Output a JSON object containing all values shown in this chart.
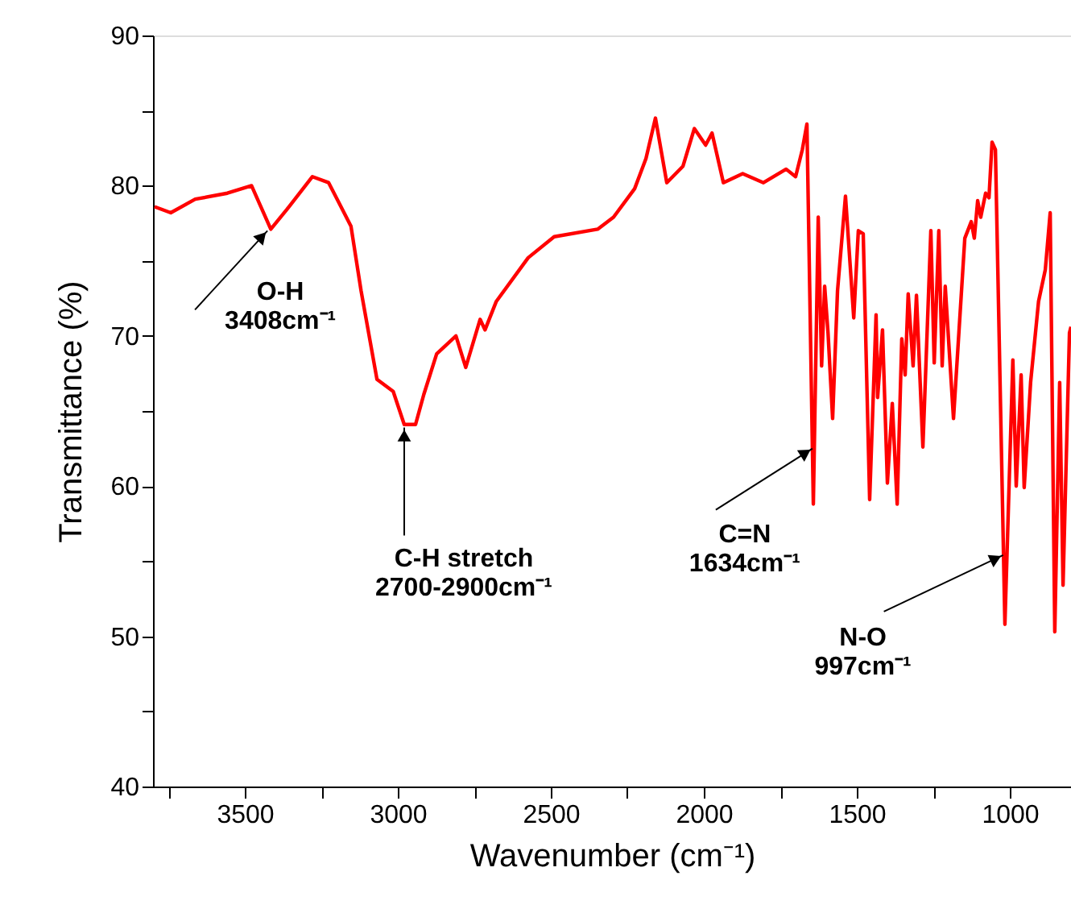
{
  "chart_data": {
    "type": "line",
    "xlabel": "Wavenumber (cm⁻¹)",
    "ylabel": "Transmittance (%)",
    "xlim": [
      3800,
      800
    ],
    "ylim": [
      40,
      90
    ],
    "xticks": [
      {
        "value": 3750,
        "label": null
      },
      3500,
      {
        "value": 3250,
        "label": null
      },
      3000,
      {
        "value": 2750,
        "label": null
      },
      2500,
      {
        "value": 2250,
        "label": null
      },
      2000,
      {
        "value": 1750,
        "label": null
      },
      1500,
      {
        "value": 1250,
        "label": null
      },
      1000
    ],
    "yticks": [
      40,
      {
        "value": 45,
        "label": null
      },
      50,
      {
        "value": 55,
        "label": null
      },
      60,
      {
        "value": 65,
        "label": null
      },
      70,
      {
        "value": 75,
        "label": null
      },
      80,
      {
        "value": 85,
        "label": null
      },
      90
    ],
    "grid": false,
    "marker": "none",
    "line_style": "solid",
    "series": [
      {
        "color": "#ff0000",
        "x": [
          3795,
          3742,
          3662,
          3557,
          3478,
          3415,
          3363,
          3279,
          3226,
          3153,
          3120,
          3068,
          3015,
          2979,
          2942,
          2915,
          2873,
          2810,
          2778,
          2731,
          2715,
          2678,
          2574,
          2489,
          2347,
          2295,
          2226,
          2189,
          2158,
          2121,
          2068,
          2031,
          1994,
          1973,
          1936,
          1873,
          1805,
          1731,
          1700,
          1678,
          1663,
          1642,
          1626,
          1615,
          1605,
          1594,
          1579,
          1563,
          1537,
          1510,
          1495,
          1479,
          1458,
          1437,
          1432,
          1416,
          1400,
          1384,
          1368,
          1353,
          1342,
          1332,
          1316,
          1305,
          1284,
          1258,
          1247,
          1232,
          1221,
          1211,
          1184,
          1147,
          1126,
          1116,
          1105,
          1095,
          1079,
          1068,
          1058,
          1047,
          1016,
          990,
          979,
          963,
          953,
          932,
          906,
          884,
          868,
          853,
          837,
          826,
          805,
          800
        ],
        "values": [
          78.6,
          78.2,
          79.1,
          79.5,
          80.0,
          77.1,
          78.4,
          80.6,
          80.2,
          77.3,
          73.0,
          67.1,
          66.3,
          64.1,
          64.1,
          66.1,
          68.8,
          70.0,
          67.9,
          71.1,
          70.4,
          72.3,
          75.2,
          76.6,
          77.1,
          77.9,
          79.8,
          81.8,
          84.5,
          80.2,
          81.3,
          83.8,
          82.7,
          83.5,
          80.2,
          80.8,
          80.2,
          81.1,
          80.6,
          82.4,
          84.1,
          58.8,
          77.9,
          68.0,
          73.3,
          70.2,
          64.5,
          73.0,
          79.3,
          71.2,
          77.0,
          76.8,
          59.1,
          71.4,
          65.9,
          70.4,
          60.2,
          65.5,
          58.8,
          69.8,
          67.4,
          72.8,
          68.0,
          72.7,
          62.6,
          77.0,
          68.2,
          77.0,
          68.0,
          73.3,
          64.5,
          76.5,
          77.6,
          76.5,
          79.0,
          77.9,
          79.5,
          79.2,
          82.9,
          82.4,
          50.8,
          68.4,
          60.0,
          67.4,
          59.9,
          66.9,
          72.3,
          74.4,
          78.2,
          50.3,
          66.9,
          53.4,
          70.2,
          70.6
        ]
      }
    ],
    "annotations": [
      {
        "text": "O-H\n3408cm⁻¹",
        "x": 3426,
        "y": 77.0
      },
      {
        "text": "C-H stretch\n2700-2900cm⁻¹",
        "x": 2979,
        "y": 63.9
      },
      {
        "text": "C=N\n1634cm⁻¹",
        "x": 1645,
        "y": 62.5
      },
      {
        "text": "N-O\n997cm⁻¹",
        "x": 1022,
        "y": 55.4
      }
    ]
  }
}
